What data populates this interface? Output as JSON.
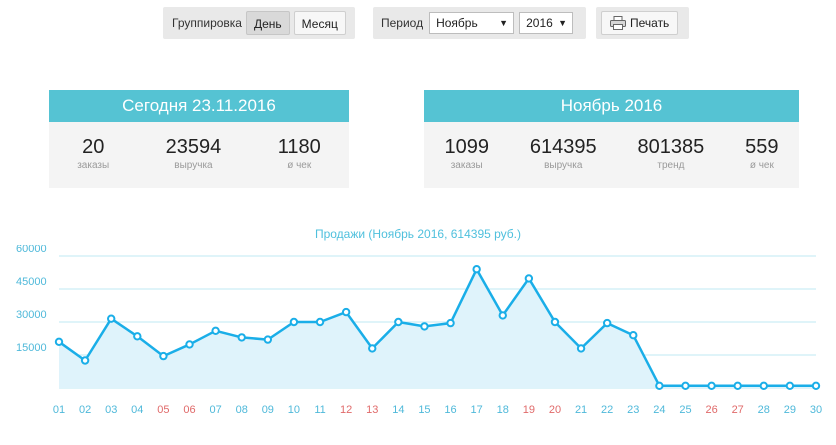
{
  "toolbar": {
    "grouping_label": "Группировка",
    "day_label": "День",
    "month_label": "Месяц",
    "period_label": "Период",
    "month_value": "Ноябрь",
    "year_value": "2016",
    "print_label": "Печать"
  },
  "today_card": {
    "title": "Сегодня 23.11.2016",
    "stats": [
      {
        "value": "20",
        "label": "заказы"
      },
      {
        "value": "23594",
        "label": "выручка"
      },
      {
        "value": "1180",
        "label": "ø чек"
      }
    ]
  },
  "month_card": {
    "title": "Ноябрь 2016",
    "stats": [
      {
        "value": "1099",
        "label": "заказы"
      },
      {
        "value": "614395",
        "label": "выручка"
      },
      {
        "value": "801385",
        "label": "тренд"
      },
      {
        "value": "559",
        "label": "ø чек"
      }
    ]
  },
  "colors": {
    "accent": "#55c3d3",
    "line": "#1aaee8",
    "fill": "#dff3fb",
    "weekend_label": "#e06a6a",
    "weekday_label": "#4fb9da"
  },
  "chart_data": {
    "type": "area",
    "title": "Продажи (Ноябрь 2016, 614395 руб.)",
    "categories": [
      "01",
      "02",
      "03",
      "04",
      "05",
      "06",
      "07",
      "08",
      "09",
      "10",
      "11",
      "12",
      "13",
      "14",
      "15",
      "16",
      "17",
      "18",
      "19",
      "20",
      "21",
      "22",
      "23",
      "24",
      "25",
      "26",
      "27",
      "28",
      "29",
      "30"
    ],
    "weekend": [
      "05",
      "06",
      "12",
      "13",
      "19",
      "20",
      "26",
      "27"
    ],
    "values": [
      21000,
      12500,
      31500,
      23500,
      14500,
      19800,
      26000,
      23000,
      22000,
      30000,
      30000,
      34500,
      18000,
      30000,
      28000,
      29500,
      54000,
      33000,
      49800,
      30000,
      18000,
      29500,
      24000,
      1000,
      1000,
      1000,
      1000,
      1000,
      1000,
      1000
    ],
    "yticks": [
      15000,
      30000,
      45000,
      60000
    ],
    "ylim": [
      0,
      60000
    ],
    "grid": true
  }
}
